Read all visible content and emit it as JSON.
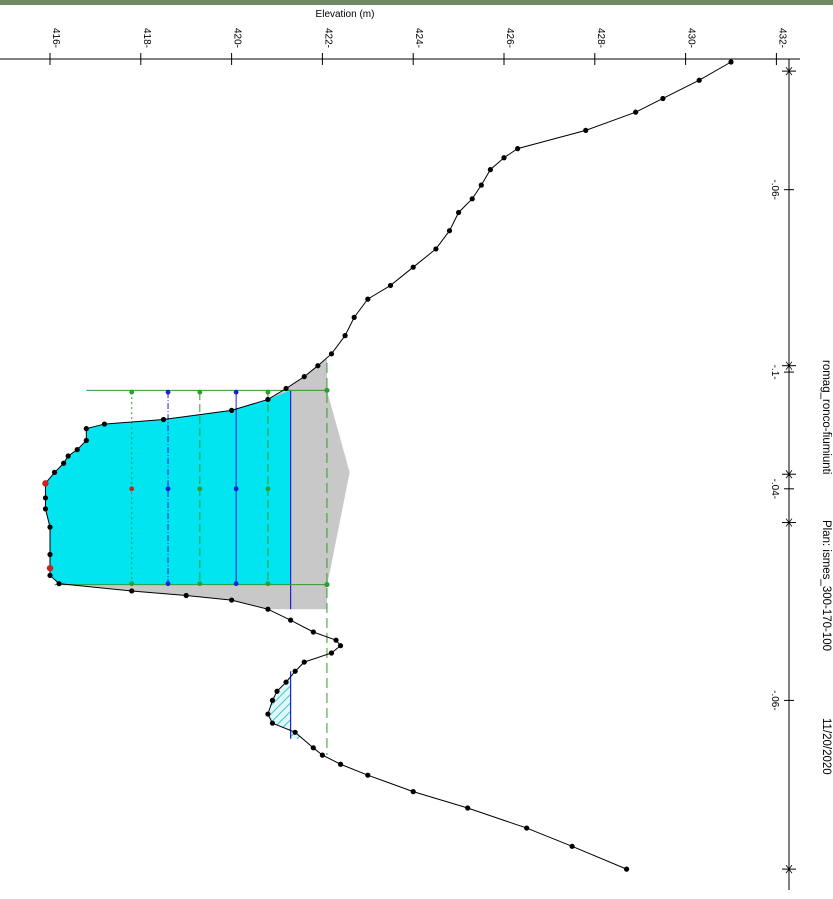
{
  "chart_data": {
    "type": "area",
    "title": "",
    "ylabel": "Elevation (m)",
    "ylim": [
      415.6,
      432.2
    ],
    "yticks": [
      "416",
      "418",
      "420",
      "422",
      "424",
      "426",
      "428",
      "430",
      "432"
    ],
    "reach_ticks": [
      {
        "label": ".06",
        "station": 140
      },
      {
        "label": ".1",
        "station": 340
      },
      {
        "label": ".04",
        "station": 468
      },
      {
        "label": ".06",
        "station": 700
      }
    ],
    "station_marks": [
      10,
      333,
      452,
      505,
      885
    ],
    "header_text": {
      "project": "romag_ronco-fiumiunti",
      "plan": "Plan: ismes_300-170-100",
      "date": "11/20/2020"
    },
    "ground_profile": [
      [
        0,
        431.0
      ],
      [
        20,
        430.3
      ],
      [
        40,
        429.5
      ],
      [
        55,
        428.9
      ],
      [
        75,
        427.8
      ],
      [
        95,
        426.3
      ],
      [
        105,
        426.0
      ],
      [
        118,
        425.7
      ],
      [
        135,
        425.5
      ],
      [
        150,
        425.3
      ],
      [
        165,
        425.0
      ],
      [
        185,
        424.8
      ],
      [
        205,
        424.5
      ],
      [
        225,
        424.0
      ],
      [
        245,
        423.5
      ],
      [
        260,
        423.0
      ],
      [
        280,
        422.7
      ],
      [
        300,
        422.5
      ],
      [
        320,
        422.2
      ],
      [
        333,
        421.9
      ],
      [
        345,
        421.6
      ],
      [
        358,
        421.2
      ],
      [
        370,
        420.8
      ],
      [
        382,
        420.0
      ],
      [
        392,
        418.5
      ],
      [
        397,
        417.2
      ],
      [
        402,
        416.8
      ],
      [
        415,
        416.8
      ],
      [
        425,
        416.6
      ],
      [
        432,
        416.4
      ],
      [
        440,
        416.3
      ],
      [
        450,
        416.1
      ],
      [
        462,
        415.9
      ],
      [
        478,
        415.9
      ],
      [
        490,
        415.9
      ],
      [
        510,
        416.0
      ],
      [
        540,
        416.0
      ],
      [
        555,
        416.0
      ],
      [
        563,
        416.0
      ],
      [
        572,
        416.2
      ],
      [
        580,
        417.8
      ],
      [
        585,
        419.0
      ],
      [
        590,
        420.0
      ],
      [
        600,
        420.8
      ],
      [
        612,
        421.3
      ],
      [
        625,
        421.8
      ],
      [
        634,
        422.3
      ],
      [
        640,
        422.4
      ],
      [
        648,
        422.2
      ],
      [
        658,
        421.6
      ],
      [
        668,
        421.4
      ],
      [
        680,
        421.2
      ],
      [
        690,
        421.0
      ],
      [
        700,
        420.9
      ],
      [
        715,
        420.8
      ],
      [
        725,
        420.9
      ],
      [
        735,
        421.4
      ],
      [
        752,
        421.8
      ],
      [
        760,
        422.0
      ],
      [
        770,
        422.4
      ],
      [
        782,
        423.0
      ],
      [
        800,
        424.0
      ],
      [
        818,
        425.2
      ],
      [
        840,
        426.5
      ],
      [
        860,
        427.5
      ],
      [
        885,
        428.7
      ]
    ],
    "water_surfaces": [
      {
        "kind": "main-ws",
        "elevation": 421.3,
        "color": "#1f1fd6"
      },
      {
        "kind": "critical",
        "elevation": 422.1,
        "color": "#2e9d2e"
      },
      {
        "kind": "levels",
        "values": [
          417.8,
          418.6,
          419.3,
          420.1,
          420.8
        ],
        "color": "#2e9d2e"
      }
    ],
    "colors": {
      "water": "#00e5f0",
      "sediment": "#c8c8c8",
      "ground": "#000000",
      "ws_blue": "#1f1fd6",
      "ws_green": "#2e9d2e",
      "marker_red": "#d02020",
      "top_bar": "#6f8a62"
    }
  }
}
